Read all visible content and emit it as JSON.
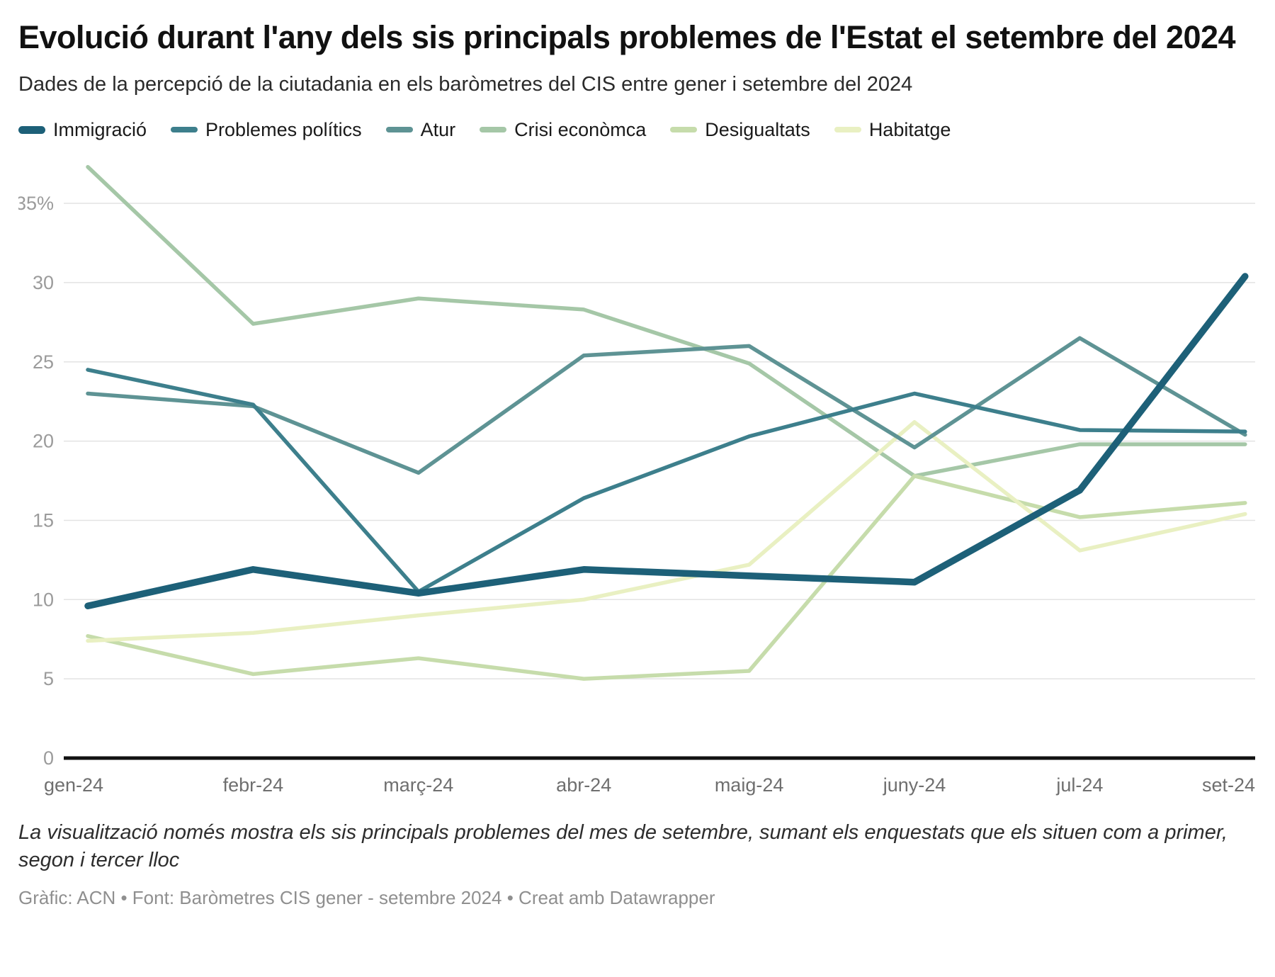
{
  "header": {
    "title": "Evolució durant l'any dels sis principals problemes de l'Estat el setembre del 2024",
    "subtitle": "Dades de la percepció de la ciutadania en els baròmetres del CIS entre gener i setembre del 2024"
  },
  "chart_data": {
    "type": "line",
    "categories": [
      "gen-24",
      "febr-24",
      "març-24",
      "abr-24",
      "maig-24",
      "juny-24",
      "jul-24",
      "set-24"
    ],
    "series": [
      {
        "name": "Immigració",
        "color": "#1d6078",
        "thick": true,
        "values": [
          9.6,
          11.9,
          10.4,
          11.9,
          11.5,
          11.1,
          16.9,
          30.4
        ]
      },
      {
        "name": "Problemes polítics",
        "color": "#3d7f8c",
        "thick": false,
        "values": [
          24.5,
          22.3,
          10.5,
          16.4,
          20.3,
          23.0,
          20.7,
          20.6
        ]
      },
      {
        "name": "Atur",
        "color": "#5e9394",
        "thick": false,
        "values": [
          23.0,
          22.2,
          18.0,
          25.4,
          26.0,
          19.6,
          26.5,
          20.4
        ]
      },
      {
        "name": "Crisi econòmca",
        "color": "#a5c7a7",
        "thick": false,
        "values": [
          37.3,
          27.4,
          29.0,
          28.3,
          24.9,
          17.8,
          19.8,
          19.8
        ]
      },
      {
        "name": "Desigualtats",
        "color": "#c6dcab",
        "thick": false,
        "values": [
          7.7,
          5.3,
          6.3,
          5.0,
          5.5,
          17.8,
          15.2,
          16.1
        ]
      },
      {
        "name": "Habitatge",
        "color": "#e9f0c2",
        "thick": false,
        "values": [
          7.4,
          7.9,
          9.0,
          10.0,
          12.2,
          21.2,
          13.1,
          15.4
        ]
      }
    ],
    "y_ticks": [
      0,
      5,
      10,
      15,
      20,
      25,
      30,
      35
    ],
    "y_tick_labels": [
      "0",
      "5",
      "10",
      "15",
      "20",
      "25",
      "30",
      "35%"
    ],
    "ylim": [
      0,
      38
    ],
    "grid": true,
    "legend_position": "top",
    "axis_colors": {
      "grid": "#e3e3e3",
      "zero_axis": "#111111",
      "y_label": "#9b9b9b",
      "x_label": "#6f6f6f"
    }
  },
  "footer": {
    "note": "La visualització només mostra els sis principals problemes del mes de setembre, sumant els enquestats que els situen com a primer, segon i tercer lloc",
    "credit": "Gràfic: ACN • Font: Baròmetres CIS gener - setembre 2024 • Creat amb Datawrapper"
  }
}
